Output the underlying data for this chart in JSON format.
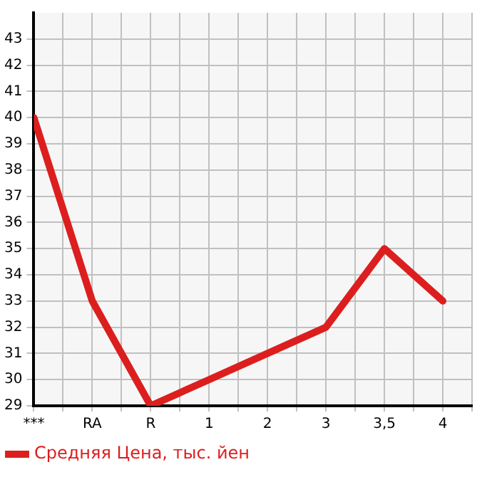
{
  "chart_data": {
    "type": "line",
    "categories": [
      "***",
      "RA",
      "R",
      "1",
      "2",
      "3",
      "3,5",
      "4"
    ],
    "series": [
      {
        "name": "Средняя Цена, тыс. йен",
        "color": "#dd1e1e",
        "values": [
          40,
          33,
          29,
          30,
          31,
          32,
          35,
          33
        ]
      }
    ],
    "ylim": [
      29,
      44
    ],
    "yticks": [
      29,
      30,
      31,
      32,
      33,
      34,
      35,
      36,
      37,
      38,
      39,
      40,
      41,
      42,
      43
    ],
    "grid": true,
    "legend": "bottom left",
    "marker": "none"
  }
}
